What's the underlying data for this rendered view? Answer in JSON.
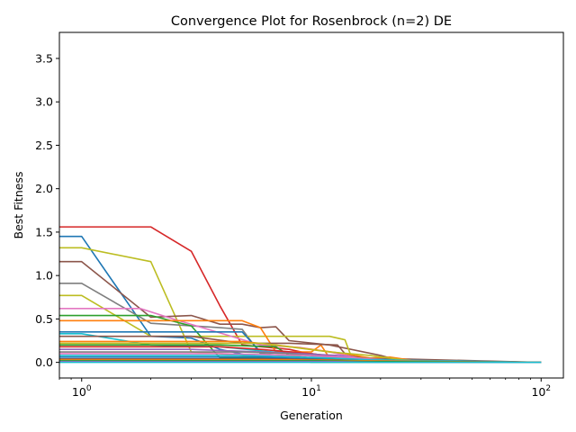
{
  "chart_data": {
    "type": "line",
    "title": "Convergence Plot for Rosenbrock (n=2) DE",
    "xlabel": "Generation",
    "ylabel": "Best Fitness",
    "xscale": "log",
    "xlim": [
      0.8,
      125
    ],
    "ylim": [
      -0.18,
      3.8
    ],
    "grid": false,
    "legend": "none",
    "x_ticks": [
      {
        "value": 1,
        "base": "10",
        "exp": "0"
      },
      {
        "value": 10,
        "base": "10",
        "exp": "1"
      },
      {
        "value": 100,
        "base": "10",
        "exp": "2"
      }
    ],
    "y_ticks": [
      {
        "value": 0.0,
        "label": "0.0"
      },
      {
        "value": 0.5,
        "label": "0.5"
      },
      {
        "value": 1.0,
        "label": "1.0"
      },
      {
        "value": 1.5,
        "label": "1.5"
      },
      {
        "value": 2.0,
        "label": "2.0"
      },
      {
        "value": 2.5,
        "label": "2.5"
      },
      {
        "value": 3.0,
        "label": "3.0"
      },
      {
        "value": 3.5,
        "label": "3.5"
      }
    ],
    "series": [
      {
        "color": "#d62728",
        "points": [
          [
            0.8,
            1.56
          ],
          [
            2,
            1.56
          ],
          [
            3,
            1.28
          ],
          [
            4,
            0.65
          ],
          [
            5,
            0.2
          ],
          [
            8,
            0.15
          ],
          [
            12,
            0.05
          ],
          [
            20,
            0.01
          ],
          [
            100,
            0.0
          ]
        ]
      },
      {
        "color": "#1f77b4",
        "points": [
          [
            0.8,
            1.45
          ],
          [
            1,
            1.45
          ],
          [
            2,
            0.3
          ],
          [
            3,
            0.28
          ],
          [
            4,
            0.15
          ],
          [
            6,
            0.05
          ],
          [
            10,
            0.02
          ],
          [
            20,
            0.0
          ],
          [
            100,
            0.0
          ]
        ]
      },
      {
        "color": "#bcbd22",
        "points": [
          [
            0.8,
            1.32
          ],
          [
            1,
            1.32
          ],
          [
            2,
            1.16
          ],
          [
            3,
            0.12
          ],
          [
            4,
            0.1
          ],
          [
            6,
            0.06
          ],
          [
            10,
            0.03
          ],
          [
            20,
            0.0
          ],
          [
            100,
            0.0
          ]
        ]
      },
      {
        "color": "#8c564b",
        "points": [
          [
            0.8,
            1.16
          ],
          [
            1,
            1.16
          ],
          [
            2,
            0.52
          ],
          [
            3,
            0.54
          ],
          [
            4,
            0.44
          ],
          [
            5,
            0.44
          ],
          [
            6,
            0.4
          ],
          [
            7,
            0.41
          ],
          [
            8,
            0.25
          ],
          [
            12,
            0.2
          ],
          [
            20,
            0.08
          ],
          [
            25,
            0.01
          ],
          [
            100,
            0.0
          ]
        ]
      },
      {
        "color": "#7f7f7f",
        "points": [
          [
            0.8,
            0.91
          ],
          [
            1,
            0.91
          ],
          [
            2,
            0.45
          ],
          [
            4,
            0.4
          ],
          [
            5,
            0.38
          ],
          [
            6,
            0.1
          ],
          [
            10,
            0.05
          ],
          [
            20,
            0.01
          ],
          [
            100,
            0.0
          ]
        ]
      },
      {
        "color": "#bcbd22",
        "points": [
          [
            0.8,
            0.77
          ],
          [
            1,
            0.77
          ],
          [
            2,
            0.3
          ],
          [
            4,
            0.3
          ],
          [
            12,
            0.3
          ],
          [
            14,
            0.26
          ],
          [
            15,
            0.05
          ],
          [
            20,
            0.02
          ],
          [
            100,
            0.0
          ]
        ]
      },
      {
        "color": "#e377c2",
        "points": [
          [
            0.8,
            0.62
          ],
          [
            1.8,
            0.62
          ],
          [
            2.5,
            0.5
          ],
          [
            6,
            0.2
          ],
          [
            9,
            0.17
          ],
          [
            12,
            0.12
          ],
          [
            16,
            0.05
          ],
          [
            25,
            0.01
          ],
          [
            100,
            0.0
          ]
        ]
      },
      {
        "color": "#2ca02c",
        "points": [
          [
            0.8,
            0.54
          ],
          [
            2,
            0.54
          ],
          [
            3,
            0.42
          ],
          [
            4,
            0.05
          ],
          [
            8,
            0.04
          ],
          [
            10,
            0.0
          ],
          [
            100,
            0.0
          ]
        ]
      },
      {
        "color": "#ff7f0e",
        "points": [
          [
            0.8,
            0.48
          ],
          [
            3,
            0.48
          ],
          [
            5,
            0.48
          ],
          [
            6,
            0.4
          ],
          [
            7,
            0.12
          ],
          [
            10,
            0.12
          ],
          [
            11,
            0.2
          ],
          [
            12,
            0.05
          ],
          [
            16,
            0.03
          ],
          [
            100,
            0.0
          ]
        ]
      },
      {
        "color": "#1f77b4",
        "points": [
          [
            0.8,
            0.35
          ],
          [
            5,
            0.35
          ],
          [
            6,
            0.12
          ],
          [
            10,
            0.1
          ],
          [
            14,
            0.05
          ],
          [
            18,
            0.01
          ],
          [
            100,
            0.0
          ]
        ]
      },
      {
        "color": "#17becf",
        "points": [
          [
            0.8,
            0.33
          ],
          [
            1,
            0.33
          ],
          [
            2,
            0.2
          ],
          [
            4,
            0.18
          ],
          [
            8,
            0.1
          ],
          [
            12,
            0.05
          ],
          [
            16,
            0.02
          ],
          [
            100,
            0.0
          ]
        ]
      },
      {
        "color": "#8c564b",
        "points": [
          [
            0.8,
            0.3
          ],
          [
            3,
            0.3
          ],
          [
            5,
            0.22
          ],
          [
            8,
            0.22
          ],
          [
            13,
            0.2
          ],
          [
            14,
            0.1
          ],
          [
            17,
            0.05
          ],
          [
            100,
            0.0
          ]
        ]
      },
      {
        "color": "#ff7f0e",
        "points": [
          [
            0.8,
            0.24
          ],
          [
            5,
            0.24
          ],
          [
            7,
            0.2
          ],
          [
            10,
            0.15
          ],
          [
            14,
            0.1
          ],
          [
            18,
            0.05
          ],
          [
            22,
            0.06
          ],
          [
            28,
            0.02
          ],
          [
            100,
            0.0
          ]
        ]
      },
      {
        "color": "#bcbd22",
        "points": [
          [
            0.8,
            0.22
          ],
          [
            6,
            0.22
          ],
          [
            8,
            0.18
          ],
          [
            12,
            0.12
          ],
          [
            18,
            0.08
          ],
          [
            25,
            0.03
          ],
          [
            35,
            0.0
          ],
          [
            100,
            0.0
          ]
        ]
      },
      {
        "color": "#2ca02c",
        "points": [
          [
            0.8,
            0.2
          ],
          [
            4,
            0.2
          ],
          [
            7,
            0.18
          ],
          [
            8,
            0.08
          ],
          [
            10,
            0.05
          ],
          [
            15,
            0.02
          ],
          [
            100,
            0.0
          ]
        ]
      },
      {
        "color": "#d62728",
        "points": [
          [
            0.8,
            0.18
          ],
          [
            4,
            0.18
          ],
          [
            6,
            0.15
          ],
          [
            10,
            0.1
          ],
          [
            15,
            0.04
          ],
          [
            20,
            0.02
          ],
          [
            100,
            0.0
          ]
        ]
      },
      {
        "color": "#9467bd",
        "points": [
          [
            0.8,
            0.15
          ],
          [
            3,
            0.15
          ],
          [
            6,
            0.12
          ],
          [
            9,
            0.1
          ],
          [
            13,
            0.08
          ],
          [
            18,
            0.03
          ],
          [
            100,
            0.0
          ]
        ]
      },
      {
        "color": "#7f7f7f",
        "points": [
          [
            0.8,
            0.12
          ],
          [
            5,
            0.12
          ],
          [
            8,
            0.1
          ],
          [
            12,
            0.06
          ],
          [
            20,
            0.04
          ],
          [
            30,
            0.0
          ],
          [
            100,
            0.0
          ]
        ]
      },
      {
        "color": "#e377c2",
        "points": [
          [
            0.8,
            0.1
          ],
          [
            4,
            0.1
          ],
          [
            9,
            0.08
          ],
          [
            14,
            0.06
          ],
          [
            22,
            0.02
          ],
          [
            100,
            0.0
          ]
        ]
      },
      {
        "color": "#17becf",
        "points": [
          [
            0.8,
            0.08
          ],
          [
            5,
            0.08
          ],
          [
            9,
            0.06
          ],
          [
            12,
            0.05
          ],
          [
            18,
            0.03
          ],
          [
            100,
            0.0
          ]
        ]
      },
      {
        "color": "#1f77b4",
        "points": [
          [
            0.8,
            0.06
          ],
          [
            6,
            0.06
          ],
          [
            10,
            0.04
          ],
          [
            16,
            0.02
          ],
          [
            100,
            0.0
          ]
        ]
      },
      {
        "color": "#8c564b",
        "points": [
          [
            0.8,
            0.04
          ],
          [
            7,
            0.04
          ],
          [
            12,
            0.03
          ],
          [
            20,
            0.01
          ],
          [
            100,
            0.0
          ]
        ]
      },
      {
        "color": "#ff7f0e",
        "points": [
          [
            0.8,
            0.03
          ],
          [
            8,
            0.03
          ],
          [
            15,
            0.02
          ],
          [
            100,
            0.0
          ]
        ]
      },
      {
        "color": "#2ca02c",
        "points": [
          [
            0.8,
            0.02
          ],
          [
            10,
            0.02
          ],
          [
            18,
            0.01
          ],
          [
            100,
            0.0
          ]
        ]
      },
      {
        "color": "#9467bd",
        "points": [
          [
            0.8,
            0.01
          ],
          [
            12,
            0.01
          ],
          [
            20,
            0.0
          ],
          [
            100,
            0.0
          ]
        ]
      },
      {
        "color": "#17becf",
        "points": [
          [
            0.8,
            0.0
          ],
          [
            100,
            0.0
          ]
        ]
      }
    ]
  }
}
